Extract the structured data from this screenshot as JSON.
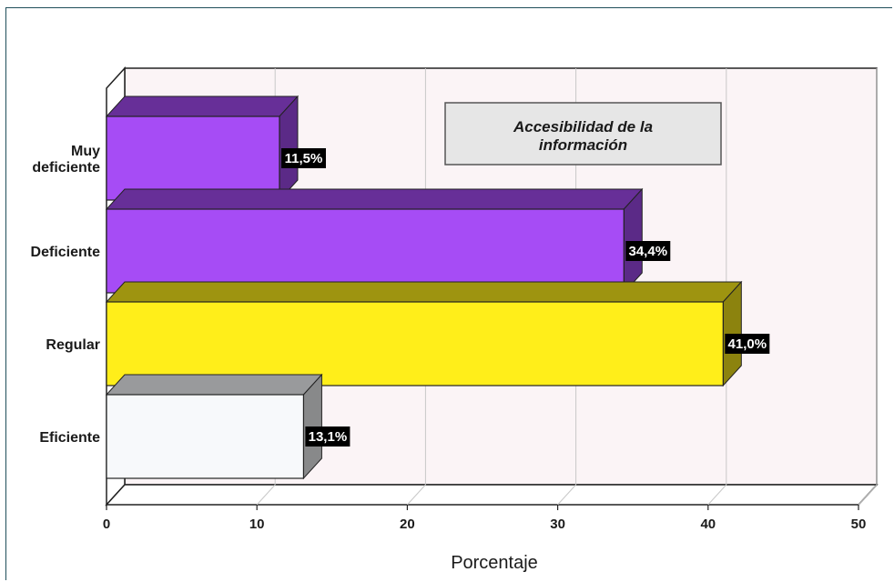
{
  "chart_data": {
    "type": "bar",
    "orientation": "horizontal",
    "style": "3d",
    "title": "",
    "legend": {
      "label": "Accesibilidad de la información",
      "lines": [
        "Accesibilidad de la",
        "información"
      ],
      "placement": "top-right"
    },
    "categories": [
      "Muy deficiente",
      "Deficiente",
      "Regular",
      "Eficiente"
    ],
    "category_lines": [
      [
        "Muy",
        "deficiente"
      ],
      [
        "Deficiente"
      ],
      [
        "Regular"
      ],
      [
        "Eficiente"
      ]
    ],
    "values": [
      11.5,
      34.4,
      41.0,
      13.1
    ],
    "data_labels": [
      "11,5%",
      "34,4%",
      "41,0%",
      "13,1%"
    ],
    "colors": [
      "#a64cf5",
      "#a64cf5",
      "#ffee1a",
      "#f7f9fb"
    ],
    "xlabel": "Porcentaje",
    "ylabel": "",
    "xlim": [
      0,
      50
    ],
    "xticks": [
      0,
      10,
      20,
      30,
      40,
      50
    ],
    "grid": true
  }
}
